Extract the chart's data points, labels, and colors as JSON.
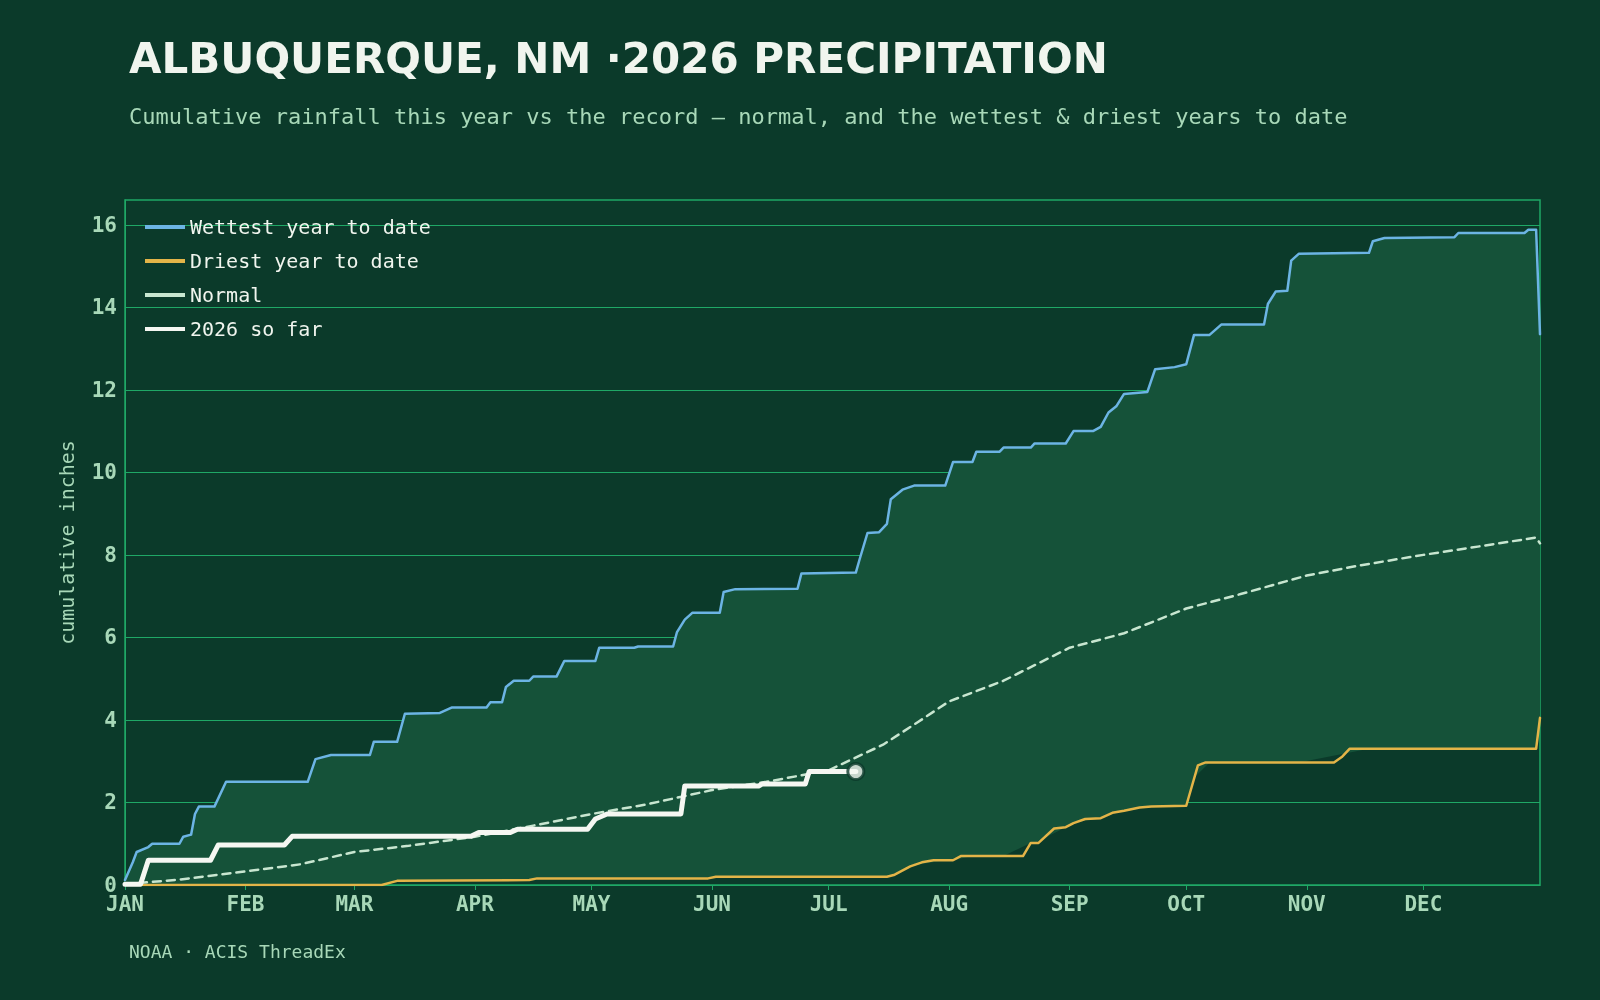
{
  "chart_data": {
    "type": "line",
    "title": "ALBUQUERQUE, NM ·2026 PRECIPITATION",
    "subtitle": "Cumulative rainfall this year vs the record — normal, and the wettest & driest years to date",
    "ylabel": "cumulative inches",
    "xlim": [
      "2026-01-01",
      "2026-12-31"
    ],
    "xticks": [
      {
        "value": "2026-01-01",
        "label": "JAN"
      },
      {
        "value": "2026-02-01",
        "label": "FEB"
      },
      {
        "value": "2026-03-01",
        "label": "MAR"
      },
      {
        "value": "2026-04-01",
        "label": "APR"
      },
      {
        "value": "2026-05-01",
        "label": "MAY"
      },
      {
        "value": "2026-06-01",
        "label": "JUN"
      },
      {
        "value": "2026-07-01",
        "label": "JUL"
      },
      {
        "value": "2026-08-01",
        "label": "AUG"
      },
      {
        "value": "2026-09-01",
        "label": "SEP"
      },
      {
        "value": "2026-10-01",
        "label": "OCT"
      },
      {
        "value": "2026-11-01",
        "label": "NOV"
      },
      {
        "value": "2026-12-01",
        "label": "DEC"
      }
    ],
    "ylim": [
      0,
      16.6
    ],
    "yticks": [
      0,
      2,
      4,
      6,
      8,
      10,
      12,
      14,
      16
    ],
    "grid": "y",
    "legend": "top left",
    "marker": "none",
    "series": [
      {
        "name": "Wettest year to date",
        "color": "#6cb4e4",
        "line_style": "solid",
        "x": [
          "2026-01-01",
          "2026-01-03",
          "2026-01-04",
          "2026-01-07",
          "2026-01-08",
          "2026-01-15",
          "2026-01-16",
          "2026-01-18",
          "2026-01-19",
          "2026-01-20",
          "2026-01-24",
          "2026-01-27",
          "2026-02-17",
          "2026-02-19",
          "2026-02-23",
          "2026-03-05",
          "2026-03-06",
          "2026-03-12",
          "2026-03-14",
          "2026-03-23",
          "2026-03-26",
          "2026-04-04",
          "2026-04-05",
          "2026-04-08",
          "2026-04-09",
          "2026-04-11",
          "2026-04-15",
          "2026-04-16",
          "2026-04-22",
          "2026-04-24",
          "2026-05-02",
          "2026-05-03",
          "2026-05-12",
          "2026-05-13",
          "2026-05-22",
          "2026-05-23",
          "2026-05-25",
          "2026-05-27",
          "2026-06-03",
          "2026-06-04",
          "2026-06-07",
          "2026-06-23",
          "2026-06-24",
          "2026-07-08",
          "2026-07-09",
          "2026-07-11",
          "2026-07-14",
          "2026-07-16",
          "2026-07-17",
          "2026-07-20",
          "2026-07-23",
          "2026-07-31",
          "2026-08-02",
          "2026-08-07",
          "2026-08-08",
          "2026-08-14",
          "2026-08-15",
          "2026-08-22",
          "2026-08-23",
          "2026-08-31",
          "2026-09-02",
          "2026-09-07",
          "2026-09-09",
          "2026-09-11",
          "2026-09-13",
          "2026-09-15",
          "2026-09-21",
          "2026-09-23",
          "2026-09-28",
          "2026-10-01",
          "2026-10-03",
          "2026-10-07",
          "2026-10-10",
          "2026-10-21",
          "2026-10-22",
          "2026-10-24",
          "2026-10-27",
          "2026-10-28",
          "2026-10-30",
          "2026-11-17",
          "2026-11-18",
          "2026-11-21",
          "2026-12-09",
          "2026-12-10",
          "2026-12-27",
          "2026-12-28",
          "2026-12-30",
          "2026-12-31"
        ],
        "values": [
          0.12,
          0.55,
          0.8,
          0.92,
          1.0,
          1.0,
          1.17,
          1.22,
          1.72,
          1.9,
          1.9,
          2.5,
          2.5,
          3.05,
          3.15,
          3.15,
          3.47,
          3.47,
          4.15,
          4.17,
          4.3,
          4.3,
          4.43,
          4.43,
          4.8,
          4.95,
          4.95,
          5.05,
          5.05,
          5.43,
          5.43,
          5.75,
          5.75,
          5.78,
          5.78,
          6.13,
          6.43,
          6.6,
          6.6,
          7.1,
          7.17,
          7.18,
          7.55,
          7.57,
          7.9,
          8.53,
          8.55,
          8.75,
          9.35,
          9.58,
          9.68,
          9.68,
          10.25,
          10.25,
          10.5,
          10.5,
          10.6,
          10.6,
          10.7,
          10.7,
          11.0,
          11.0,
          11.1,
          11.45,
          11.6,
          11.9,
          11.95,
          12.5,
          12.55,
          12.62,
          13.33,
          13.33,
          13.58,
          13.58,
          14.08,
          14.38,
          14.4,
          15.13,
          15.3,
          15.32,
          15.6,
          15.68,
          15.7,
          15.8,
          15.8,
          15.88,
          15.88,
          13.35
        ],
        "upper": [
          0.12,
          0.55,
          0.8,
          0.92,
          1.0,
          1.0,
          1.17,
          1.22,
          1.72,
          1.9,
          1.9,
          2.5,
          2.5,
          3.05,
          3.15,
          3.15,
          3.47,
          3.47,
          4.15,
          4.17,
          4.3,
          4.3,
          4.43,
          4.43,
          4.8,
          4.95,
          4.95,
          5.05,
          5.05,
          5.43,
          5.43,
          5.75,
          5.75,
          5.78,
          5.78,
          6.13,
          6.43,
          6.6,
          6.6,
          7.1,
          7.17,
          7.18,
          7.55,
          7.57,
          7.9,
          8.53,
          8.55,
          8.75,
          9.35,
          9.58,
          9.68,
          9.68,
          10.25,
          10.25,
          10.5,
          10.5,
          10.6,
          10.6,
          10.7,
          10.7,
          11.0,
          11.0,
          11.1,
          11.45,
          11.6,
          11.9,
          11.95,
          12.5,
          12.55,
          12.62,
          13.33,
          13.33,
          13.58,
          13.58,
          14.08,
          14.38,
          14.4,
          15.13,
          15.3,
          15.32,
          15.6,
          15.68,
          15.7,
          15.8,
          15.8,
          15.88,
          15.88,
          13.35
        ],
        "lower": [
          0,
          0,
          0,
          0,
          0,
          0,
          0,
          0,
          0,
          0,
          0,
          0,
          0,
          0,
          0,
          0,
          0,
          0.1,
          0.1,
          0.11,
          0.11,
          0.11,
          0.11,
          0.12,
          0.12,
          0.12,
          0.12,
          0.14,
          0.16,
          0.16,
          0.16,
          0.16,
          0.16,
          0.16,
          0.16,
          0.16,
          0.16,
          0.16,
          0.2,
          0.2,
          0.2,
          0.2,
          0.2,
          0.2,
          0.2,
          0.2,
          0.2,
          0.2,
          0.22,
          0.35,
          0.48,
          0.6,
          0.6,
          0.7,
          0.7,
          0.7,
          0.7,
          1.02,
          1.02,
          1.4,
          1.5,
          1.6,
          1.62,
          1.7,
          1.77,
          1.8,
          1.89,
          1.9,
          1.91,
          1.92,
          2.6,
          2.97,
          2.97,
          2.97,
          2.97,
          2.97,
          2.97,
          2.97,
          2.97,
          3.3,
          3.3,
          3.3,
          3.3,
          3.3,
          3.3,
          3.3,
          3.3,
          4.05
        ]
      },
      {
        "name": "Driest year to date",
        "color": "#e3b448",
        "line_style": "solid",
        "x": [
          "2026-01-01",
          "2026-03-08",
          "2026-03-12",
          "2026-04-15",
          "2026-04-17",
          "2026-05-31",
          "2026-06-02",
          "2026-07-16",
          "2026-07-18",
          "2026-07-22",
          "2026-07-25",
          "2026-07-28",
          "2026-08-02",
          "2026-08-04",
          "2026-08-20",
          "2026-08-22",
          "2026-08-24",
          "2026-08-28",
          "2026-08-31",
          "2026-09-02",
          "2026-09-05",
          "2026-09-09",
          "2026-09-12",
          "2026-09-15",
          "2026-09-19",
          "2026-09-22",
          "2026-10-01",
          "2026-10-04",
          "2026-10-06",
          "2026-11-08",
          "2026-11-10",
          "2026-11-12",
          "2026-12-30",
          "2026-12-31"
        ],
        "values": [
          0,
          0,
          0.1,
          0.12,
          0.16,
          0.16,
          0.2,
          0.2,
          0.25,
          0.45,
          0.55,
          0.6,
          0.6,
          0.7,
          0.7,
          1.02,
          1.02,
          1.37,
          1.4,
          1.5,
          1.6,
          1.62,
          1.75,
          1.8,
          1.88,
          1.9,
          1.92,
          2.9,
          2.97,
          2.97,
          3.1,
          3.3,
          3.3,
          4.05
        ]
      },
      {
        "name": "Normal",
        "color": "#c8e6d0",
        "line_style": "dashed",
        "x": [
          "2026-01-01",
          "2026-01-15",
          "2026-02-01",
          "2026-02-15",
          "2026-03-01",
          "2026-03-15",
          "2026-04-01",
          "2026-04-15",
          "2026-05-01",
          "2026-05-15",
          "2026-06-01",
          "2026-06-15",
          "2026-07-01",
          "2026-07-15",
          "2026-07-24",
          "2026-08-01",
          "2026-08-15",
          "2026-09-01",
          "2026-09-15",
          "2026-10-01",
          "2026-10-15",
          "2026-11-01",
          "2026-11-15",
          "2026-12-01",
          "2026-12-15",
          "2026-12-30",
          "2026-12-31"
        ],
        "values": [
          0.02,
          0.13,
          0.33,
          0.5,
          0.8,
          0.95,
          1.17,
          1.42,
          1.72,
          1.95,
          2.3,
          2.5,
          2.78,
          3.4,
          3.95,
          4.45,
          4.95,
          5.75,
          6.1,
          6.7,
          7.05,
          7.5,
          7.75,
          8.0,
          8.2,
          8.42,
          8.28
        ]
      },
      {
        "name": "2026 so far",
        "color": "#f5f7f2",
        "line_style": "solid",
        "x": [
          "2026-01-01",
          "2026-01-05",
          "2026-01-07",
          "2026-01-23",
          "2026-01-25",
          "2026-02-11",
          "2026-02-13",
          "2026-03-31",
          "2026-04-02",
          "2026-04-10",
          "2026-04-12",
          "2026-04-30",
          "2026-05-02",
          "2026-05-05",
          "2026-05-24",
          "2026-05-25",
          "2026-06-13",
          "2026-06-14",
          "2026-06-25",
          "2026-06-26",
          "2026-07-08"
        ],
        "values": [
          0.02,
          0.02,
          0.6,
          0.6,
          0.97,
          0.97,
          1.18,
          1.18,
          1.27,
          1.27,
          1.35,
          1.35,
          1.6,
          1.72,
          1.72,
          2.4,
          2.4,
          2.45,
          2.45,
          2.75,
          2.75
        ]
      },
      {
        "type": "scatter",
        "color": "#f5f7f2",
        "marker": "circle",
        "x": [
          "2026-07-08"
        ],
        "values": [
          2.75
        ]
      }
    ],
    "annotations": [
      "NOAA · ACIS ThreadEx"
    ]
  }
}
